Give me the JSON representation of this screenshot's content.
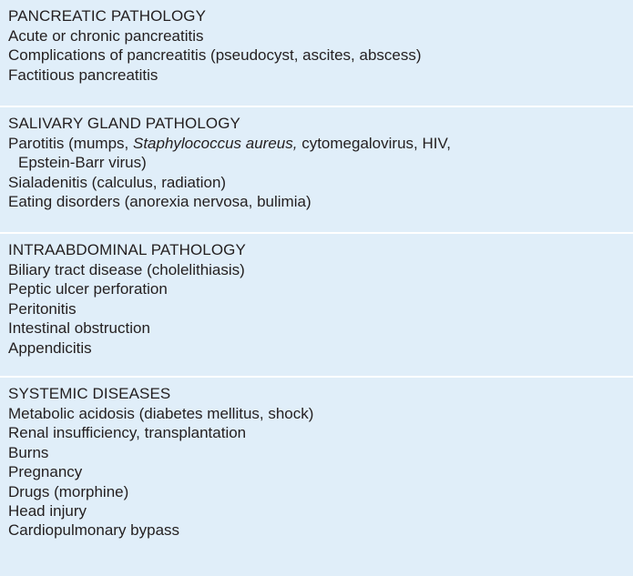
{
  "sections": [
    {
      "heading": "PANCREATIC PATHOLOGY",
      "items": [
        "Acute or chronic pancreatitis",
        "Complications of pancreatitis (pseudocyst, ascites, abscess)",
        "Factitious pancreatitis"
      ]
    },
    {
      "heading": "SALIVARY GLAND PATHOLOGY",
      "parotitis": {
        "prefix": "Parotitis (mumps, ",
        "italic": "Staphylococcus aureus,",
        "suffix": " cytomegalovirus, HIV,",
        "continuation": "Epstein-Barr virus)"
      },
      "items": [
        "Sialadenitis (calculus, radiation)",
        "Eating disorders (anorexia nervosa, bulimia)"
      ]
    },
    {
      "heading": "INTRAABDOMINAL PATHOLOGY",
      "items": [
        "Biliary tract disease (cholelithiasis)",
        "Peptic ulcer perforation",
        "Peritonitis",
        "Intestinal obstruction",
        "Appendicitis"
      ]
    },
    {
      "heading": "SYSTEMIC DISEASES",
      "items": [
        "Metabolic acidosis (diabetes mellitus, shock)",
        "Renal insufficiency, transplantation",
        "Burns",
        "Pregnancy",
        "Drugs (morphine)",
        "Head injury",
        "Cardiopulmonary bypass"
      ]
    }
  ]
}
